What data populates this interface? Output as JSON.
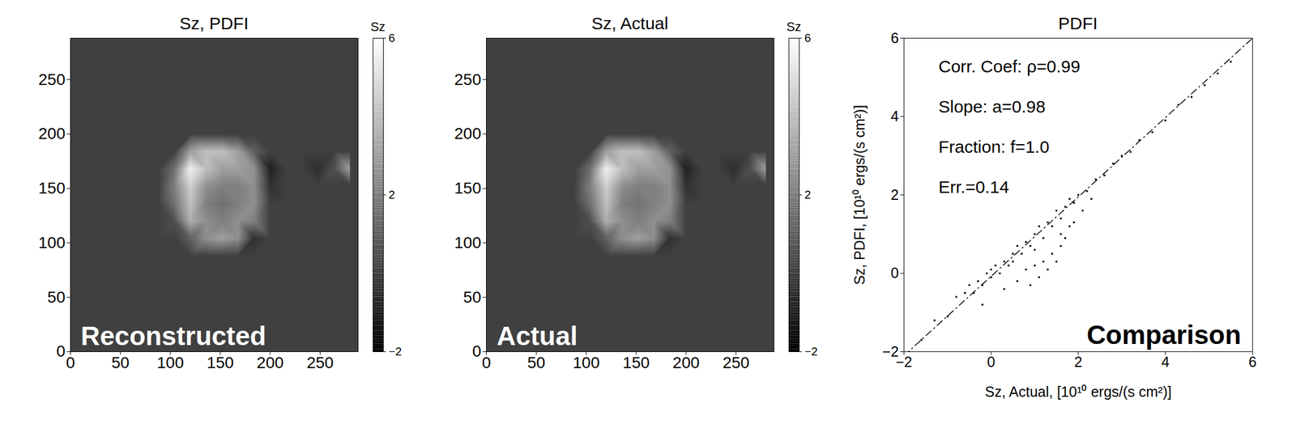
{
  "chart_data": [
    {
      "type": "heatmap",
      "title": "Sz, PDFI",
      "panel_label": "Reconstructed",
      "xlim": [
        0,
        288
      ],
      "ylim": [
        0,
        288
      ],
      "xticks": [
        0,
        50,
        100,
        150,
        200,
        250
      ],
      "yticks": [
        0,
        50,
        100,
        150,
        200,
        250
      ],
      "x": [
        8,
        24,
        40,
        56,
        72,
        88,
        104,
        120,
        136,
        152,
        168,
        184,
        200,
        216,
        232,
        248,
        264,
        280
      ],
      "y": [
        8,
        24,
        40,
        56,
        72,
        88,
        104,
        120,
        136,
        152,
        168,
        184,
        200,
        216,
        232,
        248,
        264,
        280
      ],
      "cells": [
        [
          0,
          0,
          0,
          0,
          0,
          0,
          0,
          0,
          0,
          0,
          0,
          0,
          0,
          0,
          0,
          0,
          0,
          0
        ],
        [
          0,
          0,
          0,
          0,
          0,
          0,
          0,
          0,
          0,
          0,
          0,
          0,
          0,
          0,
          0,
          0,
          0,
          0
        ],
        [
          0,
          0,
          0,
          0,
          0,
          0,
          0,
          0,
          0,
          0,
          0,
          0,
          0,
          0,
          0,
          0,
          0,
          0
        ],
        [
          0,
          0,
          0,
          0,
          0,
          0,
          0,
          0,
          0,
          0,
          0,
          0,
          0,
          0,
          0,
          0,
          0,
          0
        ],
        [
          0,
          0,
          0,
          0,
          0,
          0,
          0,
          0,
          0,
          0,
          0,
          0,
          0,
          0,
          0,
          0,
          0,
          0
        ],
        [
          0,
          0,
          0,
          0,
          0,
          0,
          0,
          0,
          0,
          0,
          0,
          0,
          0,
          0,
          0,
          0,
          0,
          0
        ],
        [
          0,
          0,
          0,
          0,
          0,
          0,
          0,
          1,
          2.5,
          3,
          2.5,
          -0.5,
          0,
          0,
          0,
          0,
          0,
          0
        ],
        [
          0,
          0,
          0,
          0,
          0,
          0,
          0.5,
          3.5,
          2.5,
          2,
          2.5,
          2,
          0,
          0,
          0,
          0,
          0,
          0
        ],
        [
          0,
          0,
          0,
          0,
          0,
          0,
          1.5,
          4,
          2,
          1.5,
          2,
          2.5,
          0,
          0,
          0,
          0,
          0,
          0
        ],
        [
          0,
          0,
          0,
          0,
          0,
          0,
          2,
          4.5,
          2.5,
          2,
          2,
          2.5,
          -0.5,
          0,
          0,
          0,
          0,
          0
        ],
        [
          0,
          0,
          0,
          0,
          0,
          0,
          1.5,
          5.5,
          4,
          3,
          3,
          2.5,
          -1,
          0,
          0,
          -0.5,
          0.5,
          3
        ],
        [
          0,
          0,
          0,
          0,
          0,
          0,
          0,
          3,
          4,
          4,
          3,
          1,
          0,
          0,
          0,
          0,
          0,
          0
        ],
        [
          0,
          0,
          0,
          0,
          0,
          0,
          0,
          0,
          0,
          0,
          0,
          0,
          0,
          0,
          0,
          0,
          0,
          0
        ],
        [
          0,
          0,
          0,
          0,
          0,
          0,
          0,
          0,
          0,
          0,
          0,
          0,
          0,
          0,
          0,
          0,
          0,
          0
        ],
        [
          0,
          0,
          0,
          0,
          0,
          0,
          0,
          0,
          0,
          0,
          0,
          0,
          0,
          0,
          0,
          0,
          0,
          0
        ],
        [
          0,
          0,
          0,
          0,
          0,
          0,
          0,
          0,
          0,
          0,
          0,
          0,
          0,
          0,
          0,
          0,
          0,
          0
        ],
        [
          0,
          0,
          0,
          0,
          0,
          0,
          0,
          0,
          0,
          0,
          0,
          0,
          0,
          0,
          0,
          0,
          0,
          0
        ],
        [
          0,
          0,
          0,
          0,
          0,
          0,
          0,
          0,
          0,
          0,
          0,
          0,
          0,
          0,
          0,
          0,
          0,
          0
        ]
      ],
      "colorbar": {
        "label": "Sz",
        "range": [
          -2,
          6
        ],
        "ticks": [
          -2,
          2,
          6
        ]
      }
    },
    {
      "type": "heatmap",
      "title": "Sz, Actual",
      "panel_label": "Actual",
      "xlim": [
        0,
        288
      ],
      "ylim": [
        0,
        288
      ],
      "xticks": [
        0,
        50,
        100,
        150,
        200,
        250
      ],
      "yticks": [
        0,
        50,
        100,
        150,
        200,
        250
      ],
      "x": [
        8,
        24,
        40,
        56,
        72,
        88,
        104,
        120,
        136,
        152,
        168,
        184,
        200,
        216,
        232,
        248,
        264,
        280
      ],
      "y": [
        8,
        24,
        40,
        56,
        72,
        88,
        104,
        120,
        136,
        152,
        168,
        184,
        200,
        216,
        232,
        248,
        264,
        280
      ],
      "cells": [
        [
          0,
          0,
          0,
          0,
          0,
          0,
          0,
          0,
          0,
          0,
          0,
          0,
          0,
          0,
          0,
          0,
          0,
          0
        ],
        [
          0,
          0,
          0,
          0,
          0,
          0,
          0,
          0,
          0,
          0,
          0,
          0,
          0,
          0,
          0,
          0,
          0,
          0
        ],
        [
          0,
          0,
          0,
          0,
          0,
          0,
          0,
          0,
          0,
          0,
          0,
          0,
          0,
          0,
          0,
          0,
          0,
          0
        ],
        [
          0,
          0,
          0,
          0,
          0,
          0,
          0,
          0,
          0,
          0,
          0,
          0,
          0,
          0,
          0,
          0,
          0,
          0
        ],
        [
          0,
          0,
          0,
          0,
          0,
          0,
          0,
          0,
          0,
          0,
          0,
          0,
          0,
          0,
          0,
          0,
          0,
          0
        ],
        [
          0,
          0,
          0,
          0,
          0,
          0,
          0,
          0,
          0,
          0,
          0,
          0,
          0,
          0,
          0,
          0,
          0,
          0
        ],
        [
          0,
          0,
          0,
          0,
          0,
          0,
          0,
          1,
          2.5,
          3,
          2.5,
          -0.5,
          0,
          0,
          0,
          0,
          0,
          0
        ],
        [
          0,
          0,
          0,
          0,
          0,
          0,
          0.5,
          3.5,
          2.5,
          2,
          2.5,
          2,
          0,
          0,
          0,
          0,
          0,
          0
        ],
        [
          0,
          0,
          0,
          0,
          0,
          0,
          1.5,
          4,
          2,
          1.6,
          2,
          2.5,
          0,
          0,
          0,
          0,
          0,
          0
        ],
        [
          0,
          0,
          0,
          0,
          0,
          0,
          2,
          4.5,
          2.5,
          2,
          2,
          2.5,
          -0.5,
          0,
          0,
          0,
          0,
          0
        ],
        [
          0,
          0,
          0,
          0,
          0,
          0,
          1.5,
          5.5,
          4,
          3,
          3,
          2.5,
          -1,
          0,
          0,
          -0.5,
          0.5,
          3
        ],
        [
          0,
          0,
          0,
          0,
          0,
          0,
          0,
          3,
          4,
          4,
          3,
          1,
          0,
          0,
          0,
          0,
          0,
          0
        ],
        [
          0,
          0,
          0,
          0,
          0,
          0,
          0,
          0,
          0,
          0,
          0,
          0,
          0,
          0,
          0,
          0,
          0,
          0
        ],
        [
          0,
          0,
          0,
          0,
          0,
          0,
          0,
          0,
          0,
          0,
          0,
          0,
          0,
          0,
          0,
          0,
          0,
          0
        ],
        [
          0,
          0,
          0,
          0,
          0,
          0,
          0,
          0,
          0,
          0,
          0,
          0,
          0,
          0,
          0,
          0,
          0,
          0
        ],
        [
          0,
          0,
          0,
          0,
          0,
          0,
          0,
          0,
          0,
          0,
          0,
          0,
          0,
          0,
          0,
          0,
          0,
          0
        ],
        [
          0,
          0,
          0,
          0,
          0,
          0,
          0,
          0,
          0,
          0,
          0,
          0,
          0,
          0,
          0,
          0,
          0,
          0
        ],
        [
          0,
          0,
          0,
          0,
          0,
          0,
          0,
          0,
          0,
          0,
          0,
          0,
          0,
          0,
          0,
          0,
          0,
          0
        ]
      ],
      "colorbar": {
        "label": "Sz",
        "range": [
          -2,
          6
        ],
        "ticks": [
          -2,
          2,
          6
        ]
      }
    },
    {
      "type": "scatter",
      "title": "PDFI",
      "panel_label": "Comparison",
      "x_label": "Sz, Actual, [10¹⁰ ergs/(s cm²)]",
      "y_label": "Sz, PDFI, [10¹⁰ ergs/(s cm²)]",
      "xlim": [
        -2,
        6
      ],
      "ylim": [
        -2,
        6
      ],
      "xticks": [
        -2,
        0,
        2,
        4,
        6
      ],
      "yticks": [
        -2,
        0,
        2,
        4,
        6
      ],
      "color": "#000000",
      "marker": "dot",
      "annotations": [
        "Corr. Coef: ρ=0.99",
        "Slope: a=0.98",
        "Fraction: f=1.0",
        "Err.=0.14"
      ],
      "x": [
        -1.6,
        -1.3,
        -1.0,
        -0.8,
        -0.6,
        -0.5,
        -0.4,
        -0.3,
        -0.2,
        -0.1,
        0.0,
        0.0,
        0.1,
        0.2,
        0.3,
        0.4,
        0.5,
        0.5,
        0.6,
        0.7,
        0.8,
        0.9,
        1.0,
        1.0,
        1.1,
        1.2,
        1.3,
        1.4,
        1.5,
        1.6,
        1.7,
        1.8,
        1.9,
        2.0,
        2.2,
        2.4,
        2.6,
        2.8,
        3.0,
        3.2,
        3.4,
        3.7,
        4.0,
        4.3,
        4.6,
        4.9,
        5.2,
        5.5,
        0.8,
        1.0,
        1.2,
        1.4,
        1.5,
        1.6,
        1.7,
        1.8,
        1.9,
        1.3,
        1.1,
        0.9,
        0.6,
        0.3,
        -0.2,
        1.6,
        2.1,
        2.3
      ],
      "y": [
        -1.7,
        -1.2,
        -1.1,
        -0.6,
        -0.5,
        -0.3,
        -0.5,
        -0.2,
        -0.3,
        0.0,
        -0.1,
        0.1,
        0.2,
        0.0,
        0.3,
        0.2,
        0.5,
        0.3,
        0.7,
        0.5,
        0.8,
        0.7,
        1.0,
        0.6,
        1.2,
        0.9,
        1.3,
        1.2,
        1.6,
        1.4,
        1.7,
        1.9,
        1.8,
        2.0,
        2.1,
        2.4,
        2.5,
        2.8,
        3.0,
        3.1,
        3.4,
        3.6,
        3.9,
        4.3,
        4.5,
        4.8,
        5.1,
        5.4,
        0.1,
        0.2,
        0.3,
        0.5,
        0.3,
        0.7,
        0.9,
        1.2,
        1.3,
        0.1,
        -0.1,
        -0.3,
        -0.2,
        -0.4,
        -0.8,
        1.0,
        1.6,
        1.9
      ],
      "fit_line": {
        "x": [
          -2,
          6
        ],
        "y": [
          -2.1,
          6.0
        ],
        "color": "#000000",
        "line_style": "dashdot"
      }
    }
  ]
}
